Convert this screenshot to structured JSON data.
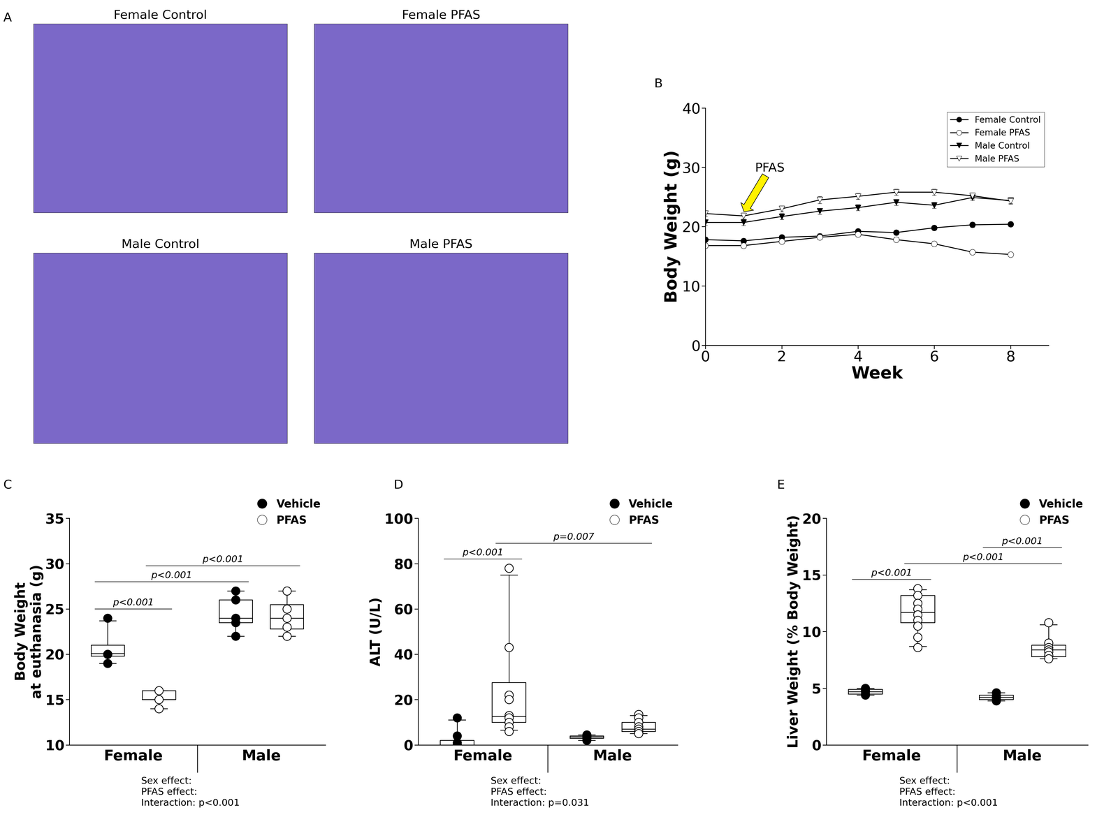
{
  "panel_a": {
    "panel": "A",
    "titles": [
      "Female Control",
      "Female PFAS",
      "Male Control",
      "Male PFAS"
    ]
  },
  "chart_data": [
    {
      "panel": "B",
      "type": "line",
      "xlabel": "Week",
      "ylabel": "Body Weight (g)",
      "x": [
        0,
        1,
        2,
        3,
        4,
        5,
        6,
        7,
        8
      ],
      "xlim": [
        0,
        9
      ],
      "xticks": [
        0,
        2,
        4,
        6,
        8
      ],
      "ylim": [
        0,
        40
      ],
      "yticks": [
        0,
        10,
        20,
        30,
        40
      ],
      "legend": "upper right",
      "annotation": {
        "text": "PFAS",
        "x": 1
      },
      "series": [
        {
          "name": "Female Control",
          "color": "#000000",
          "marker": "circle",
          "values": [
            17.8,
            17.6,
            18.2,
            18.4,
            19.2,
            19.0,
            19.8,
            20.3,
            20.4
          ],
          "errors": [
            0.4,
            0.4,
            0.4,
            0.4,
            0.4,
            0.4,
            0.4,
            0.4,
            0.4
          ]
        },
        {
          "name": "Female PFAS",
          "color": "#000000",
          "marker": "open_circle",
          "values": [
            16.8,
            16.8,
            17.5,
            18.2,
            18.7,
            17.8,
            17.1,
            15.7,
            15.3
          ],
          "errors": [
            0.4,
            0.4,
            0.4,
            0.4,
            0.4,
            0.4,
            0.4,
            0.3,
            0.3
          ]
        },
        {
          "name": "Male Control",
          "color": "#000000",
          "marker": "triangle_down",
          "values": [
            20.7,
            20.7,
            21.7,
            22.6,
            23.2,
            24.1,
            23.6,
            24.9,
            24.4
          ],
          "errors": [
            0.5,
            0.5,
            0.5,
            0.5,
            0.5,
            0.5,
            0.5,
            0.5,
            0.5
          ]
        },
        {
          "name": "Male PFAS",
          "color": "#000000",
          "marker": "open_triangle_down",
          "values": [
            22.2,
            21.8,
            23.0,
            24.5,
            25.1,
            25.8,
            25.8,
            25.2,
            24.3
          ],
          "errors": [
            0.5,
            0.5,
            0.5,
            0.6,
            0.5,
            0.5,
            0.5,
            0.5,
            0.5
          ]
        }
      ]
    },
    {
      "panel": "C",
      "type": "box",
      "ylabel": "Body Weight\nat euthanasia (g)",
      "categories": [
        "Female",
        "Male"
      ],
      "ylim": [
        10,
        35
      ],
      "yticks": [
        10,
        15,
        20,
        25,
        30,
        35
      ],
      "legend": "upper right",
      "stats": [
        "Sex effect:",
        "PFAS effect:",
        "Interaction: p<0.001"
      ],
      "series": [
        {
          "name": "Vehicle",
          "color": "#000000",
          "marker": "circle",
          "points": [
            [
              24,
              20,
              20,
              19,
              20
            ],
            [
              27,
              26,
              24,
              23.5,
              22
            ]
          ],
          "boxes": [
            {
              "whislo": 19,
              "q1": 19.8,
              "med": 20.1,
              "q3": 21,
              "whishi": 23.7
            },
            {
              "whislo": 22,
              "q1": 23.5,
              "med": 24,
              "q3": 26,
              "whishi": 27
            }
          ]
        },
        {
          "name": "PFAS",
          "color": "#000000",
          "marker": "open_circle",
          "points": [
            [
              16,
              15,
              14
            ],
            [
              27,
              25,
              24,
              23,
              22
            ]
          ],
          "boxes": [
            {
              "whislo": 14,
              "q1": 15,
              "med": 15,
              "q3": 16,
              "whishi": 16
            },
            {
              "whislo": 22,
              "q1": 22.8,
              "med": 24,
              "q3": 25.5,
              "whishi": 27
            }
          ]
        }
      ],
      "comparisons": [
        {
          "a": [
            0,
            0
          ],
          "b": [
            0,
            1
          ],
          "label": "p<0.001"
        },
        {
          "a": [
            0,
            0
          ],
          "b": [
            1,
            0
          ],
          "label": "p<0.001"
        },
        {
          "a": [
            0,
            1
          ],
          "b": [
            1,
            1
          ],
          "label": "p<0.001"
        }
      ]
    },
    {
      "panel": "D",
      "type": "box",
      "ylabel": "ALT (U/L)",
      "categories": [
        "Female",
        "Male"
      ],
      "ylim": [
        0,
        100
      ],
      "yticks": [
        0,
        20,
        40,
        60,
        80,
        100
      ],
      "legend": "upper right",
      "stats": [
        "Sex effect:",
        "PFAS effect:",
        "Interaction: p=0.031"
      ],
      "series": [
        {
          "name": "Vehicle",
          "color": "#000000",
          "marker": "circle",
          "points": [
            [
              12,
              4,
              1,
              0,
              0
            ],
            [
              4.5,
              4,
              3.5,
              3,
              2
            ]
          ],
          "boxes": [
            {
              "whislo": 0,
              "q1": 0,
              "med": 0,
              "q3": 2,
              "whishi": 11
            },
            {
              "whislo": 2,
              "q1": 3,
              "med": 3.5,
              "q3": 4,
              "whishi": 4.5
            }
          ]
        },
        {
          "name": "PFAS",
          "color": "#000000",
          "marker": "open_circle",
          "points": [
            [
              78,
              43,
              22,
              20,
              13,
              12,
              10,
              8,
              6
            ],
            [
              13.5,
              12,
              10,
              8,
              7,
              6,
              5
            ]
          ],
          "boxes": [
            {
              "whislo": 6.5,
              "q1": 10,
              "med": 12.5,
              "q3": 27.5,
              "whishi": 75
            },
            {
              "whislo": 5,
              "q1": 6,
              "med": 7,
              "q3": 10,
              "whishi": 13
            }
          ]
        }
      ],
      "comparisons": [
        {
          "a": [
            0,
            0
          ],
          "b": [
            0,
            1
          ],
          "label": "p<0.001"
        },
        {
          "a": [
            0,
            1
          ],
          "b": [
            1,
            1
          ],
          "label": "p=0.007"
        }
      ]
    },
    {
      "panel": "E",
      "type": "box",
      "ylabel": "Liver Weight (% Body Weight)",
      "categories": [
        "Female",
        "Male"
      ],
      "ylim": [
        0,
        20
      ],
      "yticks": [
        0,
        5,
        10,
        15,
        20
      ],
      "legend": "upper right",
      "stats": [
        "Sex effect:",
        "PFAS effect:",
        "Interaction: p<0.001"
      ],
      "series": [
        {
          "name": "Vehicle",
          "color": "#000000",
          "marker": "circle",
          "points": [
            [
              5,
              4.8,
              4.7,
              4.5,
              4.4
            ],
            [
              4.6,
              4.3,
              4.2,
              4.0,
              3.9
            ]
          ],
          "boxes": [
            {
              "whislo": 4.4,
              "q1": 4.5,
              "med": 4.7,
              "q3": 4.9,
              "whishi": 5
            },
            {
              "whislo": 3.9,
              "q1": 4.0,
              "med": 4.2,
              "q3": 4.4,
              "whishi": 4.6
            }
          ]
        },
        {
          "name": "PFAS",
          "color": "#000000",
          "marker": "open_circle",
          "points": [
            [
              13.8,
              13.2,
              12.5,
              12,
              11.5,
              11,
              10.5,
              9.5,
              8.6
            ],
            [
              10.8,
              9,
              8.6,
              8.4,
              8.2,
              7.9,
              7.6
            ]
          ],
          "boxes": [
            {
              "whislo": 8.7,
              "q1": 10.8,
              "med": 11.7,
              "q3": 13.2,
              "whishi": 13.7
            },
            {
              "whislo": 7.6,
              "q1": 7.8,
              "med": 8.4,
              "q3": 8.8,
              "whishi": 10.6
            }
          ]
        }
      ],
      "comparisons": [
        {
          "a": [
            0,
            0
          ],
          "b": [
            0,
            1
          ],
          "label": "p<0.001"
        },
        {
          "a": [
            0,
            1
          ],
          "b": [
            1,
            1
          ],
          "label": "p<0.001"
        },
        {
          "a": [
            1,
            0
          ],
          "b": [
            1,
            1
          ],
          "label": "p<0.001"
        }
      ]
    }
  ]
}
